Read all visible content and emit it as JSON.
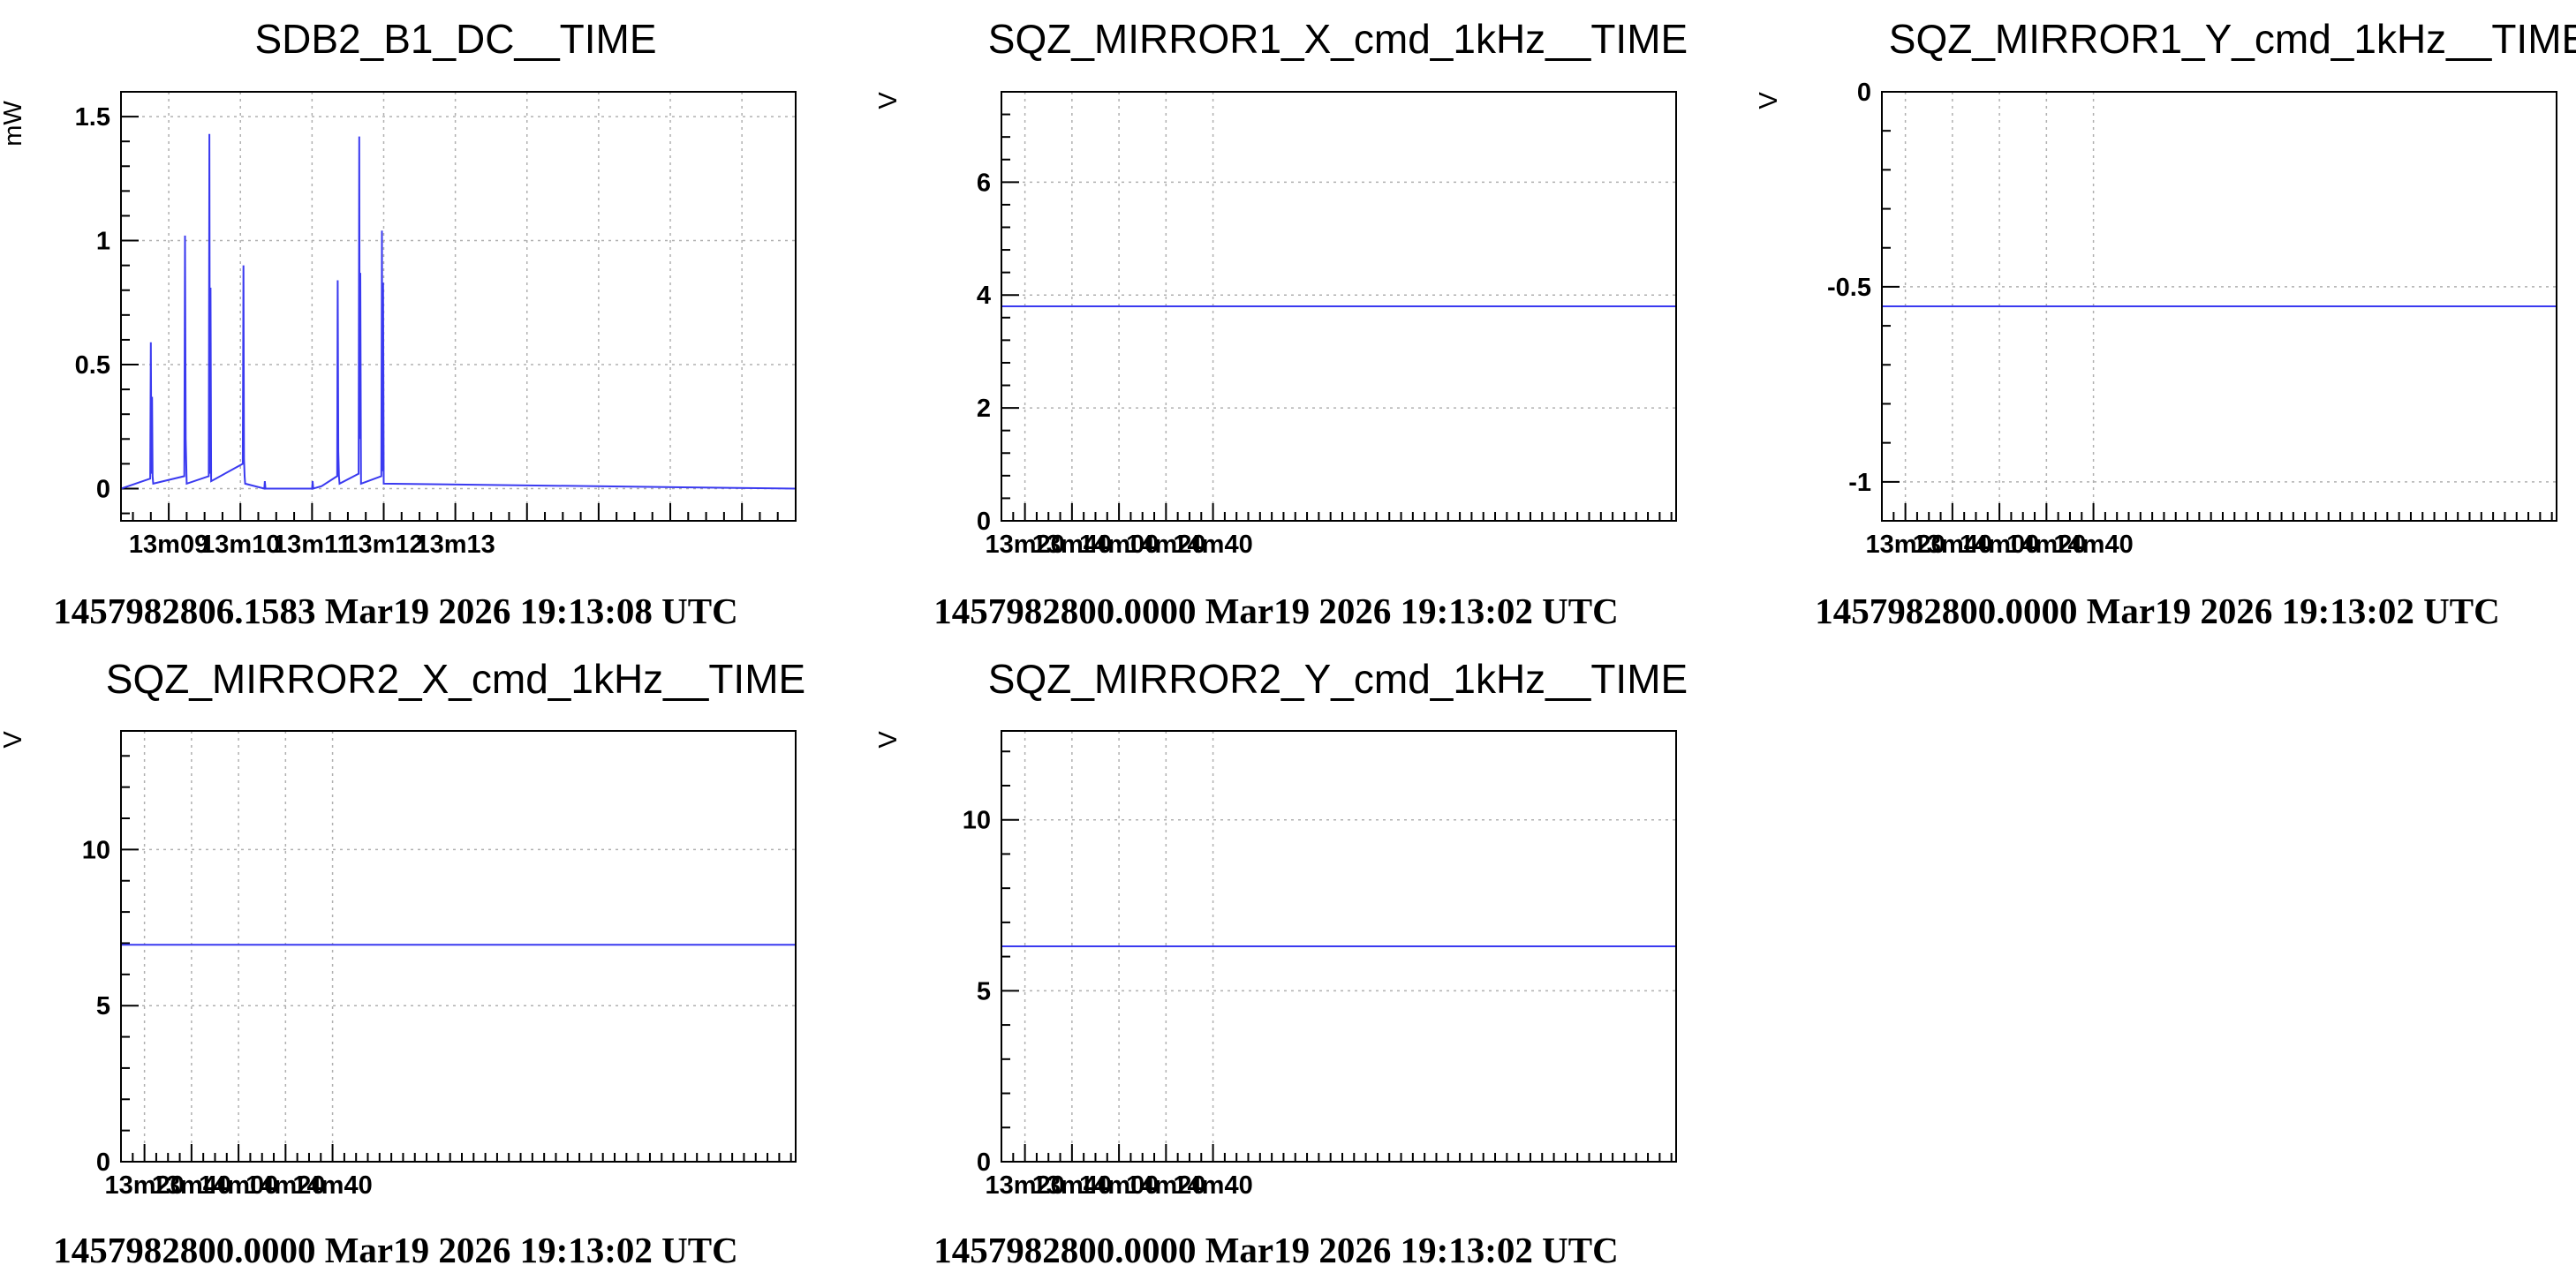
{
  "chart_data": [
    {
      "type": "line",
      "title": "SDB2_B1_DC__TIME",
      "ylabel": "mW",
      "xlabel": "",
      "ylim": [
        -0.13,
        1.6
      ],
      "xlim": [
        500,
        1065
      ],
      "grid": true,
      "yticks": [
        0,
        0.5,
        1,
        1.5
      ],
      "ytick_labels": [
        "0",
        "0.5",
        "1",
        "1.5"
      ],
      "xticks": [
        540,
        600,
        660,
        720,
        780,
        840,
        900,
        960,
        1020,
        1080
      ],
      "xtick_labels": [
        "13m09",
        "13m10",
        "13m11",
        "13m12",
        "13m13"
      ],
      "xtick_label_values": [
        540,
        600,
        660,
        720,
        780
      ],
      "time_stamp": "1457982806.1583 Mar19 2026 19:13:08 UTC",
      "series": [
        {
          "baseline": 0.0,
          "x": [
            500,
            524.5,
            525,
            525.5,
            526,
            526.5,
            527,
            553,
            553.6,
            554.2,
            555,
            573.5,
            574,
            574.5,
            575,
            575.5,
            602,
            602.6,
            603,
            603.5,
            604,
            620,
            620.5,
            621,
            660,
            660.5,
            661,
            668,
            681,
            681.5,
            682,
            682.5,
            683,
            699,
            699.5,
            700,
            700.4,
            701,
            718,
            718.5,
            719,
            719.5,
            720,
            1065
          ],
          "y": [
            0,
            0.04,
            0.59,
            0.06,
            0.37,
            0.05,
            0.02,
            0.05,
            1.02,
            0.2,
            0.02,
            0.05,
            1.43,
            0.06,
            0.81,
            0.03,
            0.1,
            0.9,
            0.12,
            0.05,
            0.02,
            0.0,
            0.03,
            0.0,
            0.0,
            0.03,
            0.0,
            0.01,
            0.05,
            0.84,
            0.15,
            0.05,
            0.02,
            0.06,
            1.42,
            0.2,
            0.87,
            0.02,
            0.05,
            1.04,
            0.07,
            0.83,
            0.02,
            0
          ]
        }
      ]
    },
    {
      "type": "line",
      "title": "SQZ_MIRROR1_X_cmd_1kHz__TIME",
      "ylabel": "V",
      "xlabel": "",
      "ylim": [
        0,
        7.6
      ],
      "xlim": [
        790,
        1077
      ],
      "grid": true,
      "yticks": [
        0,
        2,
        4,
        6
      ],
      "ytick_labels": [
        "0",
        "2",
        "4",
        "6"
      ],
      "xticks": [
        800,
        820,
        840,
        860,
        880
      ],
      "xtick_labels": [
        "13m20",
        "13m40",
        "14m00",
        "14m20",
        "14m40"
      ],
      "time_stamp": "1457982800.0000 Mar19 2026 19:13:02 UTC",
      "series": [
        {
          "x": [
            790,
            1077
          ],
          "y": [
            3.8,
            3.8
          ]
        }
      ]
    },
    {
      "type": "line",
      "title": "SQZ_MIRROR1_Y_cmd_1kHz__TIME",
      "ylabel": "V",
      "xlabel": "",
      "ylim": [
        -1.1,
        0
      ],
      "xlim": [
        790,
        1077
      ],
      "grid": true,
      "yticks": [
        -1,
        -0.5,
        0
      ],
      "ytick_labels": [
        "-1",
        "-0.5",
        "0"
      ],
      "xticks": [
        800,
        820,
        840,
        860,
        880
      ],
      "xtick_labels": [
        "13m20",
        "13m40",
        "14m00",
        "14m20",
        "14m40"
      ],
      "time_stamp": "1457982800.0000 Mar19 2026 19:13:02 UTC",
      "series": [
        {
          "x": [
            790,
            1077
          ],
          "y": [
            -0.55,
            -0.55
          ]
        }
      ]
    },
    {
      "type": "line",
      "title": "SQZ_MIRROR2_X_cmd_1kHz__TIME",
      "ylabel": "V",
      "xlabel": "",
      "ylim": [
        0,
        13.8
      ],
      "xlim": [
        790,
        1077
      ],
      "grid": true,
      "yticks": [
        0,
        5,
        10
      ],
      "ytick_labels": [
        "0",
        "5",
        "10"
      ],
      "xticks": [
        800,
        820,
        840,
        860,
        880
      ],
      "xtick_labels": [
        "13m20",
        "13m40",
        "14m00",
        "14m20",
        "14m40"
      ],
      "time_stamp": "1457982800.0000 Mar19 2026 19:13:02 UTC",
      "series": [
        {
          "x": [
            790,
            1077
          ],
          "y": [
            6.95,
            6.95
          ]
        }
      ]
    },
    {
      "type": "line",
      "title": "SQZ_MIRROR2_Y_cmd_1kHz__TIME",
      "ylabel": "V",
      "xlabel": "",
      "ylim": [
        0,
        12.6
      ],
      "xlim": [
        790,
        1077
      ],
      "grid": true,
      "yticks": [
        0,
        5,
        10
      ],
      "ytick_labels": [
        "0",
        "5",
        "10"
      ],
      "xticks": [
        800,
        820,
        840,
        860,
        880
      ],
      "xtick_labels": [
        "13m20",
        "13m40",
        "14m00",
        "14m20",
        "14m40"
      ],
      "time_stamp": "1457982800.0000 Mar19 2026 19:13:02 UTC",
      "series": [
        {
          "x": [
            790,
            1077
          ],
          "y": [
            6.3,
            6.3
          ]
        }
      ]
    }
  ],
  "colors": {
    "series": "#3a3af0",
    "grid": "#b0b0b0",
    "frame": "#000000",
    "background": "#ffffff"
  }
}
